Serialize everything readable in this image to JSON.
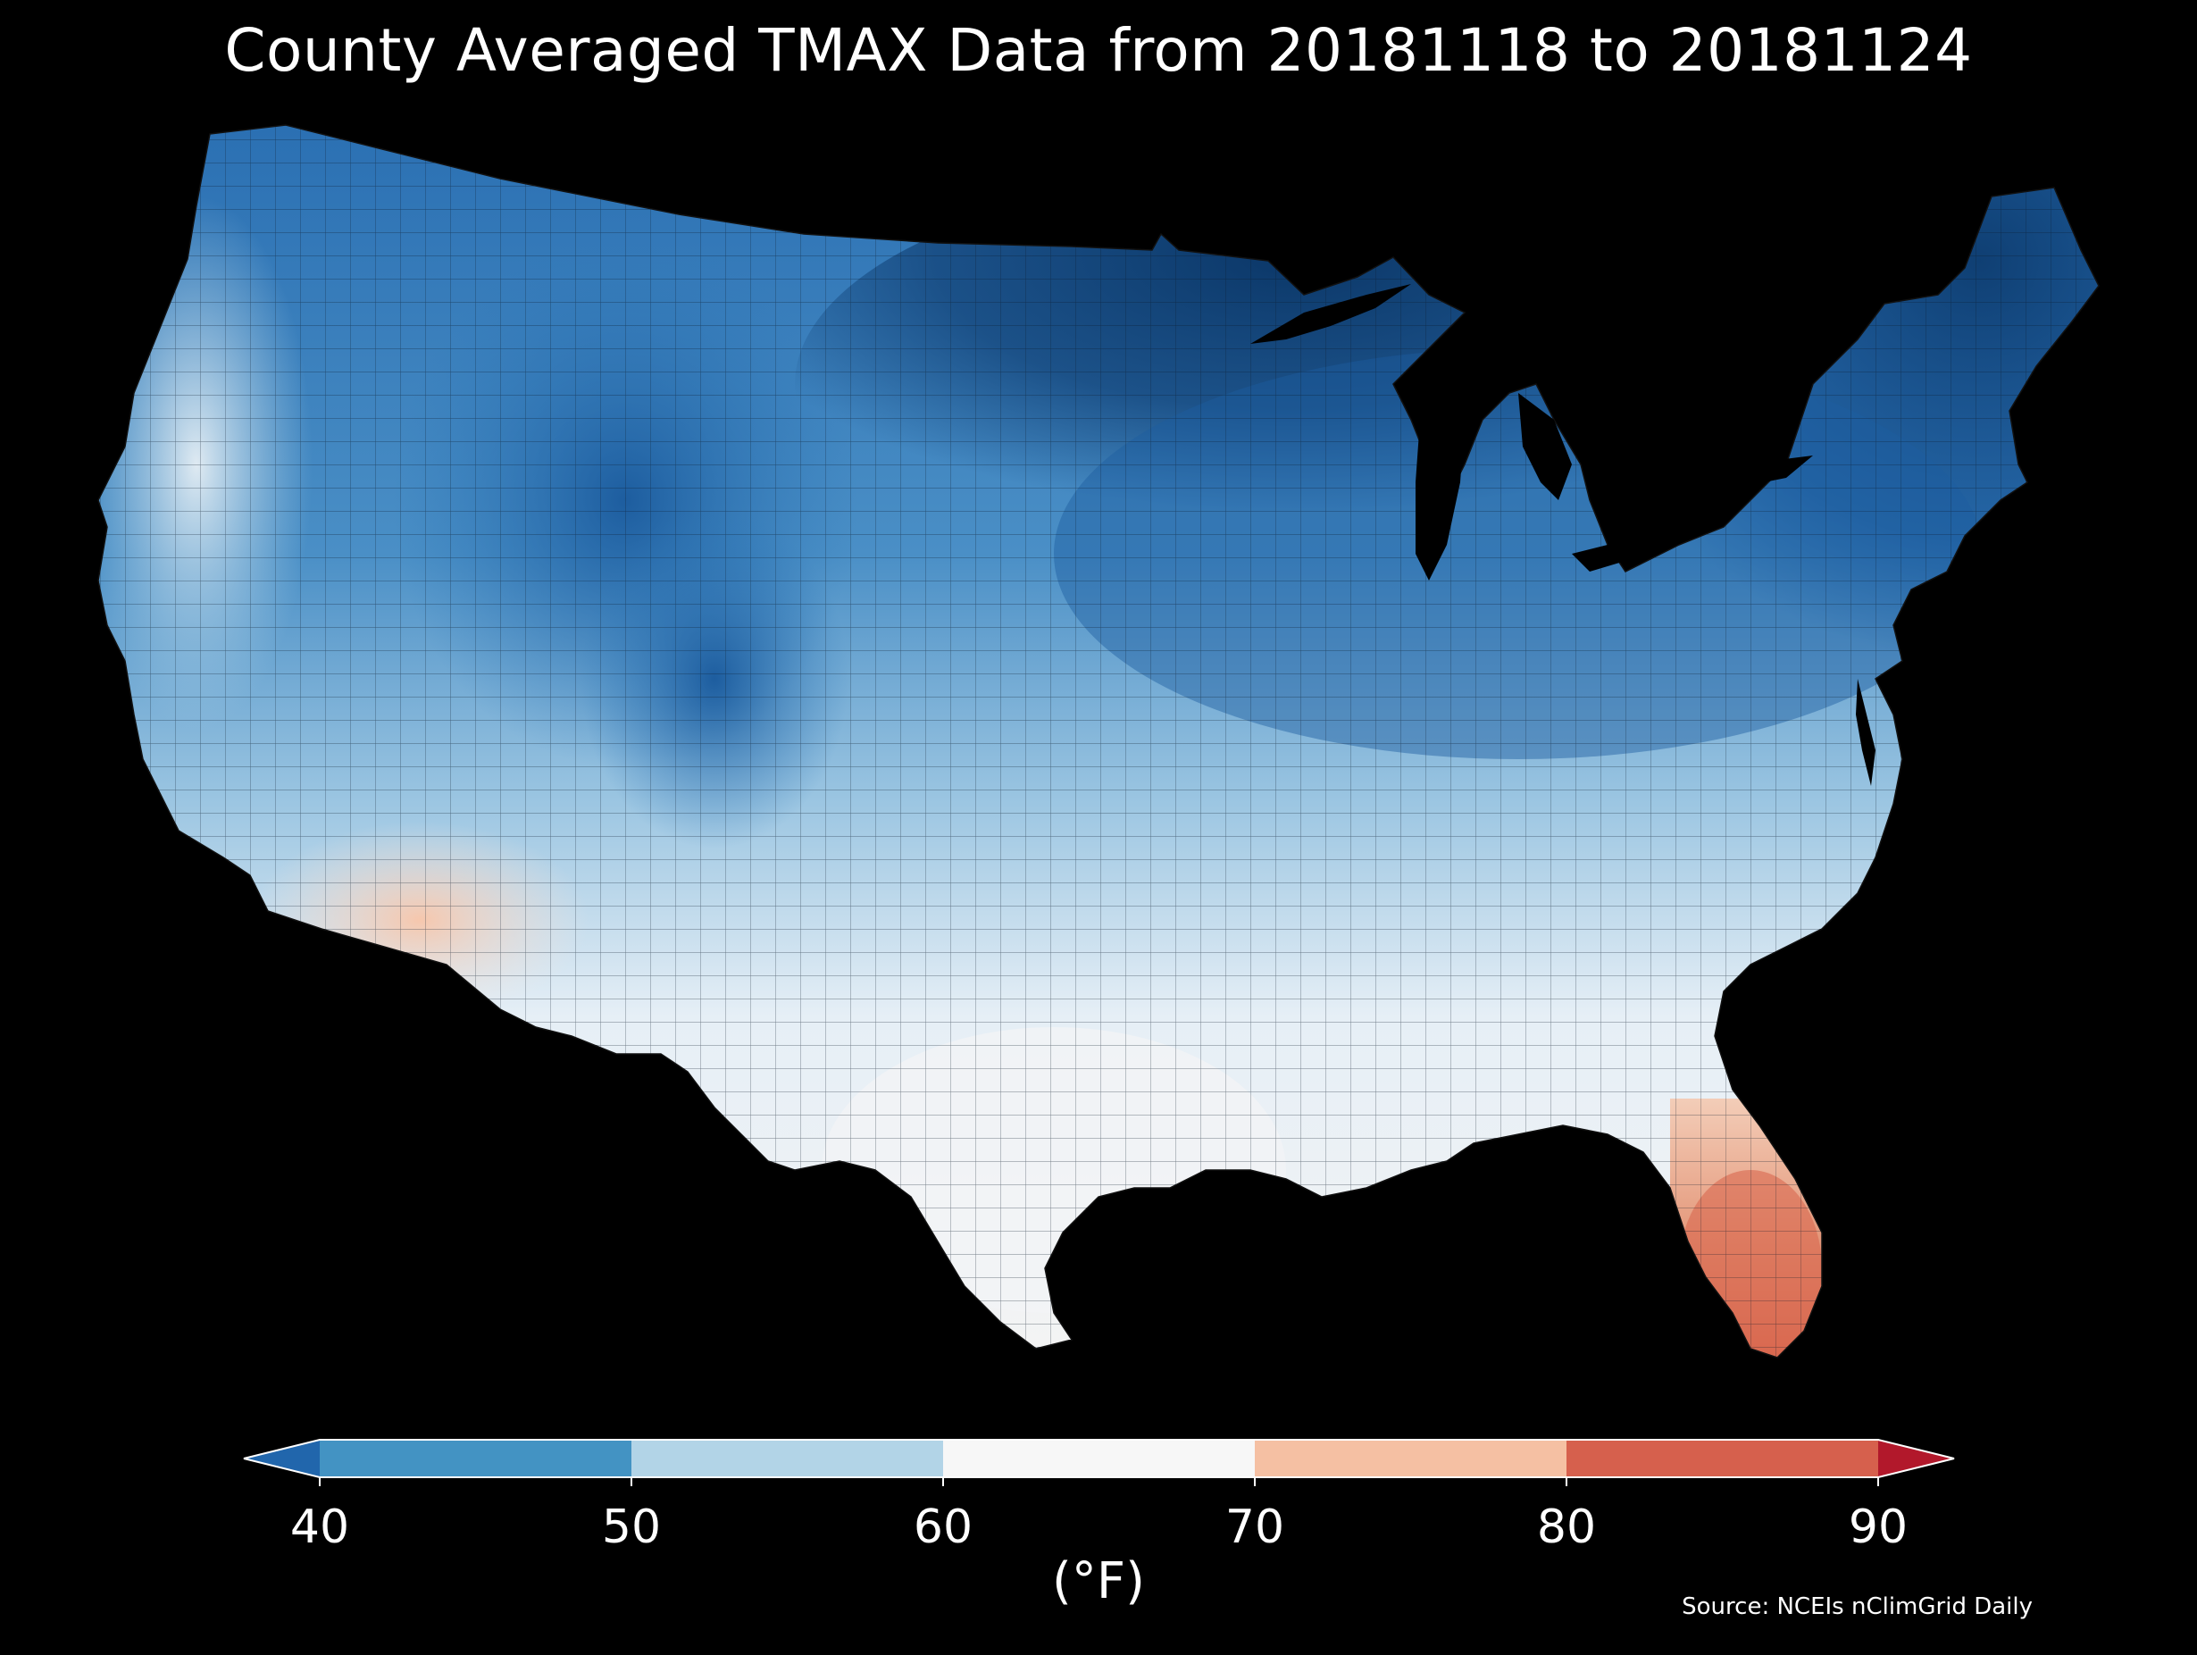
{
  "title": "County Averaged TMAX Data from 20181118 to 20181124",
  "colorbar": {
    "units_label": "(°F)",
    "ticks": [
      "40",
      "50",
      "60",
      "70",
      "80",
      "90"
    ],
    "bins": [
      {
        "min": null,
        "max": 40,
        "color": "#2166ac"
      },
      {
        "min": 40,
        "max": 50,
        "color": "#4393c3"
      },
      {
        "min": 50,
        "max": 60,
        "color": "#b2d4e7"
      },
      {
        "min": 60,
        "max": 70,
        "color": "#f7f7f7"
      },
      {
        "min": 70,
        "max": 80,
        "color": "#f5c0a3"
      },
      {
        "min": 80,
        "max": 90,
        "color": "#d6604d"
      },
      {
        "min": 90,
        "max": null,
        "color": "#b2182b"
      }
    ]
  },
  "source": "Source: NCEIs nClimGrid Daily",
  "map": {
    "region": "contiguous United States",
    "background": "#000000",
    "palette": {
      "coldest": "#0b3768",
      "very_cold": "#1d5d9f",
      "cold": "#3a86c0",
      "cool": "#6baed6",
      "mild": "#a8cfe5",
      "neutral": "#eef3f7",
      "warm": "#f9d9c7",
      "hot": "#e28466"
    }
  }
}
